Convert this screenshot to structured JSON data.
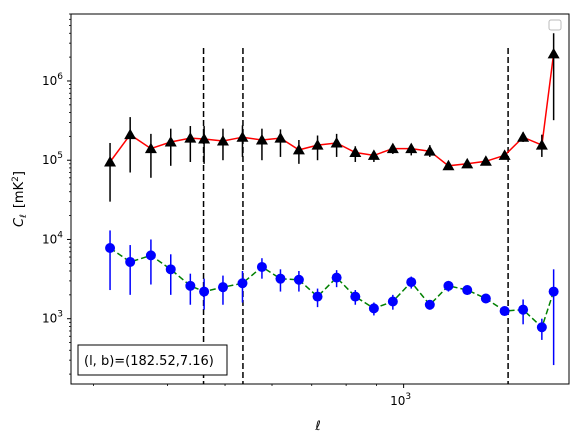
{
  "chart_data": {
    "type": "line",
    "xlabel": "ℓ",
    "ylabel_main": "C",
    "ylabel_sub": "ℓ",
    "ylabel_unit": "[mK",
    "ylabel_unit_sup": "2",
    "ylabel_unit_end": "]",
    "xscale": "log",
    "yscale": "log",
    "xlim": [
      275,
      1900
    ],
    "ylim": [
      150,
      7000000
    ],
    "x_major_ticks": [
      {
        "value": 1000,
        "base": "10",
        "exp": "3"
      }
    ],
    "y_major_ticks": [
      {
        "value": 1000,
        "base": "10",
        "exp": "3"
      },
      {
        "value": 10000,
        "base": "10",
        "exp": "4"
      },
      {
        "value": 100000,
        "base": "10",
        "exp": "5"
      },
      {
        "value": 1000000,
        "base": "10",
        "exp": "6"
      }
    ],
    "vlines": [
      460,
      536,
      1500
    ],
    "legend": "top-right (empty)",
    "annotation": "(l, b)=(182.52,7.16)",
    "series": [
      {
        "marker": "triangle",
        "marker_color": "#000000",
        "line_color": "#ff0000",
        "line_style": "solid",
        "x": [
          320,
          346,
          375,
          405,
          437,
          461,
          496,
          535,
          577,
          620,
          666,
          716,
          771,
          829,
          891,
          959,
          1030,
          1107,
          1190,
          1280,
          1376,
          1480,
          1590,
          1710,
          1790
        ],
        "y": [
          95000,
          210000,
          140000,
          170000,
          190000,
          185000,
          175000,
          195000,
          180000,
          190000,
          135000,
          155000,
          165000,
          125000,
          115000,
          140000,
          140000,
          130000,
          85000,
          90000,
          97000,
          115000,
          195000,
          155000,
          2200000
        ],
        "err_lo": [
          30000,
          70000,
          60000,
          85000,
          95000,
          90000,
          100000,
          110000,
          100000,
          110000,
          90000,
          100000,
          110000,
          95000,
          95000,
          120000,
          115000,
          110000,
          80000,
          85000,
          90000,
          110000,
          170000,
          110000,
          320000
        ],
        "err_hi": [
          165000,
          350000,
          215000,
          250000,
          270000,
          270000,
          250000,
          275000,
          250000,
          245000,
          180000,
          205000,
          215000,
          150000,
          130000,
          155000,
          155000,
          155000,
          90000,
          95000,
          105000,
          120000,
          225000,
          210000,
          4000000
        ]
      },
      {
        "marker": "circle",
        "marker_color": "#0000ff",
        "line_color": "#008000",
        "line_style": "dashed",
        "x": [
          320,
          346,
          375,
          405,
          437,
          461,
          496,
          535,
          577,
          620,
          666,
          716,
          771,
          829,
          891,
          959,
          1030,
          1107,
          1190,
          1280,
          1376,
          1480,
          1590,
          1710,
          1790
        ],
        "y": [
          7800,
          5200,
          6300,
          4200,
          2600,
          2200,
          2500,
          2800,
          4500,
          3200,
          3100,
          1900,
          3300,
          1900,
          1350,
          1650,
          2900,
          1500,
          2600,
          2300,
          1800,
          1250,
          1300,
          780,
          2200
        ],
        "err_lo": [
          2300,
          2000,
          2700,
          2000,
          1500,
          1300,
          1500,
          1600,
          3200,
          2200,
          2200,
          1400,
          2500,
          1500,
          1100,
          1300,
          2400,
          1300,
          2200,
          2000,
          1600,
          1100,
          850,
          540,
          260
        ],
        "err_hi": [
          13000,
          8500,
          10000,
          6500,
          3700,
          3200,
          3500,
          4000,
          5800,
          4200,
          4000,
          2400,
          4100,
          2300,
          1600,
          2000,
          3400,
          1700,
          3000,
          2600,
          2000,
          1400,
          1750,
          1000,
          4200
        ]
      }
    ]
  }
}
